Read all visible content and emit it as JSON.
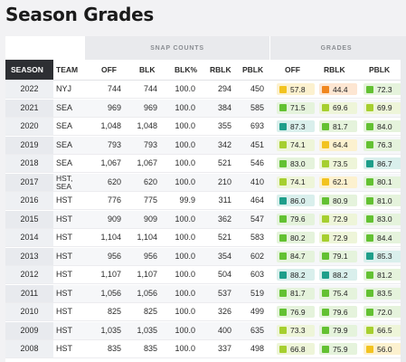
{
  "title": "Season Grades",
  "groups": {
    "snap": "SNAP COUNTS",
    "grades": "GRADES"
  },
  "headers": {
    "season": "SEASON",
    "team": "TEAM",
    "off": "OFF",
    "blk": "BLK",
    "blk_pct": "BLK%",
    "rblk": "RBLK",
    "pblk": "PBLK",
    "g_off": "OFF",
    "g_rblk": "RBLK",
    "g_pblk": "PBLK"
  },
  "colors": {
    "green": "#63c132",
    "lime": "#a6cf2f",
    "yellow": "#f2c320",
    "orange": "#f0871f",
    "teal": "#1e9e8a",
    "bg_green": "#e5f3dc",
    "bg_lime": "#eef5d9",
    "bg_yellow": "#fcf1cf",
    "bg_orange": "#fde6d2",
    "bg_teal": "#d9efec"
  },
  "rows": [
    {
      "season": "2022",
      "team": "NYJ",
      "off": "744",
      "blk": "744",
      "blk_pct": "100.0",
      "rblk": "294",
      "pblk": "450",
      "g_off": "57.8",
      "c_off": "yellow",
      "g_rblk": "44.4",
      "c_rblk": "orange",
      "g_pblk": "72.3",
      "c_pblk": "green"
    },
    {
      "season": "2021",
      "team": "SEA",
      "off": "969",
      "blk": "969",
      "blk_pct": "100.0",
      "rblk": "384",
      "pblk": "585",
      "g_off": "71.5",
      "c_off": "green",
      "g_rblk": "69.6",
      "c_rblk": "lime",
      "g_pblk": "69.9",
      "c_pblk": "lime"
    },
    {
      "season": "2020",
      "team": "SEA",
      "off": "1,048",
      "blk": "1,048",
      "blk_pct": "100.0",
      "rblk": "355",
      "pblk": "693",
      "g_off": "87.3",
      "c_off": "teal",
      "g_rblk": "81.7",
      "c_rblk": "green",
      "g_pblk": "84.0",
      "c_pblk": "green"
    },
    {
      "season": "2019",
      "team": "SEA",
      "off": "793",
      "blk": "793",
      "blk_pct": "100.0",
      "rblk": "342",
      "pblk": "451",
      "g_off": "74.1",
      "c_off": "lime",
      "g_rblk": "64.4",
      "c_rblk": "yellow",
      "g_pblk": "76.3",
      "c_pblk": "green"
    },
    {
      "season": "2018",
      "team": "SEA",
      "off": "1,067",
      "blk": "1,067",
      "blk_pct": "100.0",
      "rblk": "521",
      "pblk": "546",
      "g_off": "83.0",
      "c_off": "green",
      "g_rblk": "73.5",
      "c_rblk": "lime",
      "g_pblk": "86.7",
      "c_pblk": "teal"
    },
    {
      "season": "2017",
      "team": "HST,\nSEA",
      "off": "620",
      "blk": "620",
      "blk_pct": "100.0",
      "rblk": "210",
      "pblk": "410",
      "g_off": "74.1",
      "c_off": "lime",
      "g_rblk": "62.1",
      "c_rblk": "yellow",
      "g_pblk": "80.1",
      "c_pblk": "green"
    },
    {
      "season": "2016",
      "team": "HST",
      "off": "776",
      "blk": "775",
      "blk_pct": "99.9",
      "rblk": "311",
      "pblk": "464",
      "g_off": "86.0",
      "c_off": "teal",
      "g_rblk": "80.9",
      "c_rblk": "green",
      "g_pblk": "81.0",
      "c_pblk": "green"
    },
    {
      "season": "2015",
      "team": "HST",
      "off": "909",
      "blk": "909",
      "blk_pct": "100.0",
      "rblk": "362",
      "pblk": "547",
      "g_off": "79.6",
      "c_off": "green",
      "g_rblk": "72.9",
      "c_rblk": "lime",
      "g_pblk": "83.0",
      "c_pblk": "green"
    },
    {
      "season": "2014",
      "team": "HST",
      "off": "1,104",
      "blk": "1,104",
      "blk_pct": "100.0",
      "rblk": "521",
      "pblk": "583",
      "g_off": "80.2",
      "c_off": "green",
      "g_rblk": "72.9",
      "c_rblk": "lime",
      "g_pblk": "84.4",
      "c_pblk": "green"
    },
    {
      "season": "2013",
      "team": "HST",
      "off": "956",
      "blk": "956",
      "blk_pct": "100.0",
      "rblk": "354",
      "pblk": "602",
      "g_off": "84.7",
      "c_off": "green",
      "g_rblk": "79.1",
      "c_rblk": "green",
      "g_pblk": "85.3",
      "c_pblk": "teal"
    },
    {
      "season": "2012",
      "team": "HST",
      "off": "1,107",
      "blk": "1,107",
      "blk_pct": "100.0",
      "rblk": "504",
      "pblk": "603",
      "g_off": "88.2",
      "c_off": "teal",
      "g_rblk": "88.2",
      "c_rblk": "teal",
      "g_pblk": "81.2",
      "c_pblk": "green"
    },
    {
      "season": "2011",
      "team": "HST",
      "off": "1,056",
      "blk": "1,056",
      "blk_pct": "100.0",
      "rblk": "537",
      "pblk": "519",
      "g_off": "81.7",
      "c_off": "green",
      "g_rblk": "75.4",
      "c_rblk": "green",
      "g_pblk": "83.5",
      "c_pblk": "green"
    },
    {
      "season": "2010",
      "team": "HST",
      "off": "825",
      "blk": "825",
      "blk_pct": "100.0",
      "rblk": "326",
      "pblk": "499",
      "g_off": "76.9",
      "c_off": "green",
      "g_rblk": "79.6",
      "c_rblk": "green",
      "g_pblk": "72.0",
      "c_pblk": "green"
    },
    {
      "season": "2009",
      "team": "HST",
      "off": "1,035",
      "blk": "1,035",
      "blk_pct": "100.0",
      "rblk": "400",
      "pblk": "635",
      "g_off": "73.3",
      "c_off": "lime",
      "g_rblk": "79.9",
      "c_rblk": "green",
      "g_pblk": "66.5",
      "c_pblk": "lime"
    },
    {
      "season": "2008",
      "team": "HST",
      "off": "835",
      "blk": "835",
      "blk_pct": "100.0",
      "rblk": "337",
      "pblk": "498",
      "g_off": "66.8",
      "c_off": "lime",
      "g_rblk": "75.9",
      "c_rblk": "green",
      "g_pblk": "56.0",
      "c_pblk": "yellow"
    }
  ]
}
